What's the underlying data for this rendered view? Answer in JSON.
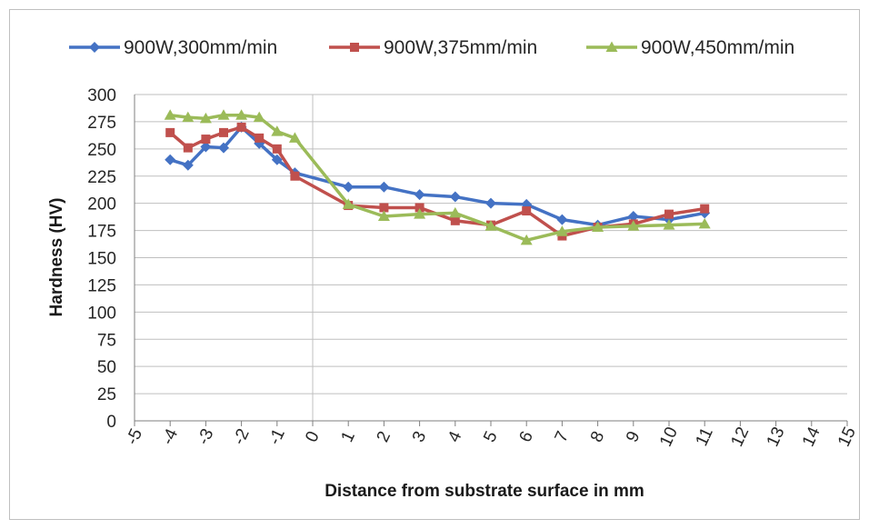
{
  "chart_data": {
    "type": "line",
    "title": "",
    "xlabel": "Distance from substrate surface in mm",
    "ylabel": "Hardness (HV)",
    "xlim": [
      -5,
      15
    ],
    "ylim": [
      0,
      300
    ],
    "x_ticks": [
      "-5",
      "-4",
      "-3",
      "-2",
      "-1",
      "0",
      "1",
      "2",
      "3",
      "4",
      "5",
      "6",
      "7",
      "8",
      "9",
      "10",
      "11",
      "12",
      "13",
      "14",
      "15"
    ],
    "y_ticks": [
      "0",
      "25",
      "50",
      "75",
      "100",
      "125",
      "150",
      "175",
      "200",
      "225",
      "250",
      "275",
      "300"
    ],
    "grid": true,
    "legend_position": "top",
    "series": [
      {
        "name": "900W,300mm/min",
        "color": "#4472c4",
        "marker": "diamond",
        "x": [
          -4,
          -3.5,
          -3,
          -2.5,
          -2,
          -1.5,
          -1,
          -0.5,
          1,
          2,
          3,
          4,
          5,
          6,
          7,
          8,
          9,
          10,
          11
        ],
        "y": [
          240,
          235,
          252,
          251,
          270,
          255,
          240,
          228,
          215,
          215,
          208,
          206,
          200,
          199,
          185,
          180,
          188,
          185,
          191
        ]
      },
      {
        "name": "900W,375mm/min",
        "color": "#c0504d",
        "marker": "square",
        "x": [
          -4,
          -3.5,
          -3,
          -2.5,
          -2,
          -1.5,
          -1,
          -0.5,
          1,
          2,
          3,
          4,
          5,
          6,
          7,
          8,
          9,
          10,
          11
        ],
        "y": [
          265,
          251,
          259,
          265,
          270,
          260,
          250,
          225,
          198,
          196,
          196,
          184,
          180,
          193,
          170,
          178,
          181,
          190,
          195
        ]
      },
      {
        "name": "900W,450mm/min",
        "color": "#9bbb59",
        "marker": "triangle",
        "x": [
          -4,
          -3.5,
          -3,
          -2.5,
          -2,
          -1.5,
          -1,
          -0.5,
          1,
          2,
          3,
          4,
          5,
          6,
          7,
          8,
          9,
          10,
          11
        ],
        "y": [
          281,
          279,
          278,
          281,
          281,
          279,
          266,
          260,
          199,
          188,
          190,
          191,
          179,
          166,
          174,
          178,
          179,
          180,
          181
        ]
      }
    ]
  }
}
